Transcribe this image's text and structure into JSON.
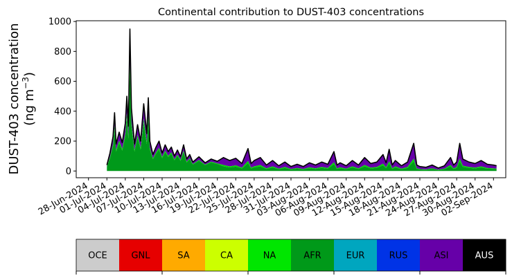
{
  "chart_data": {
    "type": "area",
    "title": "Continental contribution to DUST-403 concentrations",
    "ylabel_line1": "DUST-403 concentration",
    "ylabel_line2_prefix": "(ng m",
    "ylabel_line2_sup": "−3",
    "ylabel_line2_suffix": ")",
    "xlabel": "",
    "y_ticks": [
      0,
      200,
      400,
      600,
      800,
      1000
    ],
    "ylim": [
      -45,
      1005
    ],
    "xlim": [
      "2024-06-26",
      "2024-09-04"
    ],
    "x_tick_labels": [
      "28-Jun-2024",
      "01-Jul-2024",
      "04-Jul-2024",
      "07-Jul-2024",
      "10-Jul-2024",
      "13-Jul-2024",
      "16-Jul-2024",
      "19-Jul-2024",
      "22-Jul-2024",
      "25-Jul-2024",
      "28-Jul-2024",
      "31-Jul-2024",
      "03-Aug-2024",
      "06-Aug-2024",
      "09-Aug-2024",
      "12-Aug-2024",
      "15-Aug-2024",
      "18-Aug-2024",
      "21-Aug-2024",
      "24-Aug-2024",
      "27-Aug-2024",
      "30-Aug-2024",
      "02-Sep-2024"
    ],
    "grid": false,
    "total": {
      "name": "total",
      "color": "#000000",
      "points": [
        [
          "2024-07-01",
          40
        ],
        [
          "2024-07-01T12",
          120
        ],
        [
          "2024-07-02",
          230
        ],
        [
          "2024-07-02T06",
          390
        ],
        [
          "2024-07-02T12",
          180
        ],
        [
          "2024-07-03",
          260
        ],
        [
          "2024-07-03T12",
          190
        ],
        [
          "2024-07-04",
          320
        ],
        [
          "2024-07-04T06",
          500
        ],
        [
          "2024-07-04T12",
          300
        ],
        [
          "2024-07-04T18",
          950
        ],
        [
          "2024-07-05",
          420
        ],
        [
          "2024-07-05T12",
          180
        ],
        [
          "2024-07-06",
          310
        ],
        [
          "2024-07-06T12",
          200
        ],
        [
          "2024-07-07",
          450
        ],
        [
          "2024-07-07T12",
          250
        ],
        [
          "2024-07-07T18",
          490
        ],
        [
          "2024-07-08",
          200
        ],
        [
          "2024-07-08T12",
          110
        ],
        [
          "2024-07-09",
          160
        ],
        [
          "2024-07-09T12",
          200
        ],
        [
          "2024-07-10",
          120
        ],
        [
          "2024-07-10T12",
          175
        ],
        [
          "2024-07-11",
          130
        ],
        [
          "2024-07-11T12",
          160
        ],
        [
          "2024-07-12",
          100
        ],
        [
          "2024-07-12T12",
          140
        ],
        [
          "2024-07-13",
          95
        ],
        [
          "2024-07-13T12",
          175
        ],
        [
          "2024-07-14",
          80
        ],
        [
          "2024-07-14T12",
          110
        ],
        [
          "2024-07-15",
          60
        ],
        [
          "2024-07-16",
          95
        ],
        [
          "2024-07-17",
          55
        ],
        [
          "2024-07-18",
          80
        ],
        [
          "2024-07-19",
          65
        ],
        [
          "2024-07-20",
          90
        ],
        [
          "2024-07-21",
          70
        ],
        [
          "2024-07-22",
          85
        ],
        [
          "2024-07-23",
          50
        ],
        [
          "2024-07-24",
          150
        ],
        [
          "2024-07-24T12",
          50
        ],
        [
          "2024-07-25",
          70
        ],
        [
          "2024-07-26",
          90
        ],
        [
          "2024-07-27",
          40
        ],
        [
          "2024-07-28",
          70
        ],
        [
          "2024-07-29",
          35
        ],
        [
          "2024-07-30",
          60
        ],
        [
          "2024-07-31",
          30
        ],
        [
          "2024-08-01",
          45
        ],
        [
          "2024-08-02",
          30
        ],
        [
          "2024-08-03",
          55
        ],
        [
          "2024-08-04",
          40
        ],
        [
          "2024-08-05",
          60
        ],
        [
          "2024-08-06",
          45
        ],
        [
          "2024-08-07",
          130
        ],
        [
          "2024-08-07T12",
          40
        ],
        [
          "2024-08-08",
          55
        ],
        [
          "2024-08-09",
          35
        ],
        [
          "2024-08-10",
          70
        ],
        [
          "2024-08-11",
          40
        ],
        [
          "2024-08-12",
          90
        ],
        [
          "2024-08-13",
          50
        ],
        [
          "2024-08-14",
          60
        ],
        [
          "2024-08-15",
          110
        ],
        [
          "2024-08-15T12",
          55
        ],
        [
          "2024-08-16",
          145
        ],
        [
          "2024-08-16T12",
          40
        ],
        [
          "2024-08-17",
          70
        ],
        [
          "2024-08-18",
          35
        ],
        [
          "2024-08-19",
          60
        ],
        [
          "2024-08-20",
          185
        ],
        [
          "2024-08-20T12",
          40
        ],
        [
          "2024-08-21",
          30
        ],
        [
          "2024-08-22",
          25
        ],
        [
          "2024-08-23",
          40
        ],
        [
          "2024-08-24",
          20
        ],
        [
          "2024-08-25",
          35
        ],
        [
          "2024-08-26",
          90
        ],
        [
          "2024-08-26T12",
          40
        ],
        [
          "2024-08-27",
          60
        ],
        [
          "2024-08-27T12",
          185
        ],
        [
          "2024-08-28",
          80
        ],
        [
          "2024-08-29",
          60
        ],
        [
          "2024-08-30",
          50
        ],
        [
          "2024-08-31",
          70
        ],
        [
          "2024-09-01",
          45
        ],
        [
          "2024-09-02",
          40
        ],
        [
          "2024-09-02T12",
          35
        ]
      ]
    },
    "stack_fractions": [
      {
        "name": "AFR",
        "color": "#00991a",
        "fraction_before_aug": 0.72,
        "fraction_after_aug": 0.35
      },
      {
        "name": "NA",
        "color": "#00d800",
        "fraction_before_aug": 0.06,
        "fraction_after_aug": 0.1
      },
      {
        "name": "ASI",
        "color": "#6600a8",
        "fraction_before_aug": 0.22,
        "fraction_after_aug": 0.55
      }
    ],
    "legend_placement": "bottom",
    "legend": [
      {
        "name": "OCE",
        "color": "#cccccc",
        "text_color": "#000000"
      },
      {
        "name": "GNL",
        "color": "#e60000",
        "text_color": "#000000"
      },
      {
        "name": "SA",
        "color": "#ffaa00",
        "text_color": "#000000"
      },
      {
        "name": "CA",
        "color": "#ccff00",
        "text_color": "#000000"
      },
      {
        "name": "NA",
        "color": "#00e600",
        "text_color": "#000000"
      },
      {
        "name": "AFR",
        "color": "#009919",
        "text_color": "#000000"
      },
      {
        "name": "EUR",
        "color": "#00a6bf",
        "text_color": "#000000"
      },
      {
        "name": "RUS",
        "color": "#0033e6",
        "text_color": "#000000"
      },
      {
        "name": "ASI",
        "color": "#6600a8",
        "text_color": "#000000"
      },
      {
        "name": "AUS",
        "color": "#000000",
        "text_color": "#ffffff"
      }
    ]
  }
}
